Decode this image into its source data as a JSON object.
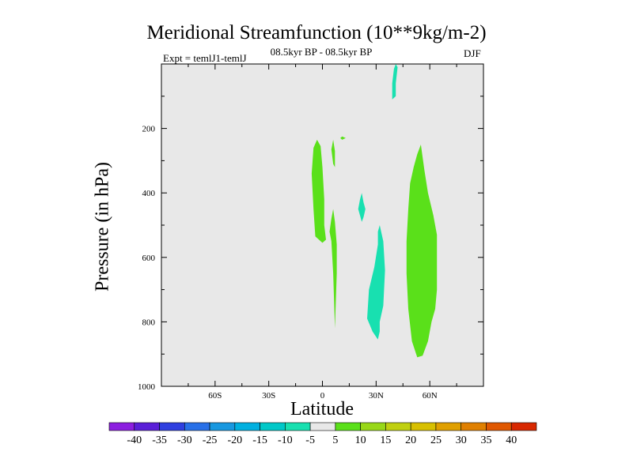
{
  "chart_data": {
    "type": "contour",
    "title": "Meridional Streamfunction (10**9kg/m-2)",
    "subtitle": "08.5kyr BP - 08.5kyr BP",
    "left_label": "Expt = temlJ1-temlJ",
    "right_label": "DJF",
    "xlabel": "Latitude",
    "ylabel": "Pressure (in hPa)",
    "xlim": [
      -90,
      90
    ],
    "ylim": [
      1000,
      0
    ],
    "x_ticks": [
      {
        "value": -60,
        "label": "60S"
      },
      {
        "value": -30,
        "label": "30S"
      },
      {
        "value": 0,
        "label": "0"
      },
      {
        "value": 30,
        "label": "30N"
      },
      {
        "value": 60,
        "label": "60N"
      }
    ],
    "y_ticks": [
      {
        "value": 200,
        "label": "200"
      },
      {
        "value": 400,
        "label": "400"
      },
      {
        "value": 600,
        "label": "600"
      },
      {
        "value": 800,
        "label": "800"
      },
      {
        "value": 1000,
        "label": "1000"
      }
    ],
    "background_color": "#e8e8e8",
    "colorbar": {
      "labels": [
        "-40",
        "-35",
        "-30",
        "-25",
        "-20",
        "-15",
        "-10",
        "-5",
        "5",
        "10",
        "15",
        "20",
        "25",
        "30",
        "35",
        "40"
      ],
      "colors": [
        "#8c1ee0",
        "#5a1fd8",
        "#2f3fe0",
        "#2870e8",
        "#1898e0",
        "#00b0e0",
        "#00c8c8",
        "#18e0b0",
        "#e8e8e8",
        "#5ae01a",
        "#98d818",
        "#c0d010",
        "#d8c000",
        "#e0a000",
        "#e08000",
        "#e05800",
        "#d82800"
      ]
    },
    "regions": [
      {
        "level": "5 to 10",
        "color": "#5ae01a",
        "points": [
          [
            -3,
            235
          ],
          [
            -1,
            255
          ],
          [
            0,
            320
          ],
          [
            1,
            420
          ],
          [
            1,
            500
          ],
          [
            2,
            545
          ],
          [
            0,
            555
          ],
          [
            -4,
            535
          ],
          [
            -5,
            450
          ],
          [
            -6,
            340
          ],
          [
            -5,
            260
          ]
        ]
      },
      {
        "level": "5 to 10",
        "color": "#5ae01a",
        "points": [
          [
            6,
            235
          ],
          [
            7,
            270
          ],
          [
            7,
            320
          ],
          [
            6,
            310
          ],
          [
            5,
            265
          ]
        ]
      },
      {
        "level": "5 to 10",
        "color": "#5ae01a",
        "points": [
          [
            11,
            225
          ],
          [
            13,
            230
          ],
          [
            11,
            235
          ],
          [
            10,
            230
          ]
        ]
      },
      {
        "level": "5 to 10",
        "color": "#5ae01a",
        "points": [
          [
            6,
            450
          ],
          [
            7,
            490
          ],
          [
            8,
            560
          ],
          [
            8,
            650
          ],
          [
            7,
            820
          ],
          [
            6,
            650
          ],
          [
            5,
            550
          ],
          [
            4,
            520
          ],
          [
            5,
            480
          ]
        ]
      },
      {
        "level": "-5 to -10",
        "color": "#18e0b0",
        "points": [
          [
            41,
            0
          ],
          [
            42,
            10
          ],
          [
            41,
            60
          ],
          [
            41,
            100
          ],
          [
            39,
            110
          ],
          [
            39,
            60
          ],
          [
            40,
            15
          ]
        ]
      },
      {
        "level": "-5 to -10",
        "color": "#18e0b0",
        "points": [
          [
            22,
            400
          ],
          [
            23,
            430
          ],
          [
            24,
            450
          ],
          [
            23,
            475
          ],
          [
            22,
            490
          ],
          [
            21,
            470
          ],
          [
            20,
            450
          ],
          [
            21,
            420
          ]
        ]
      },
      {
        "level": "-5 to -10",
        "color": "#18e0b0",
        "points": [
          [
            32,
            500
          ],
          [
            34,
            550
          ],
          [
            35,
            640
          ],
          [
            34,
            750
          ],
          [
            32,
            800
          ],
          [
            32,
            830
          ],
          [
            31,
            855
          ],
          [
            28,
            830
          ],
          [
            25,
            790
          ],
          [
            26,
            700
          ],
          [
            29,
            630
          ],
          [
            31,
            560
          ],
          [
            31,
            520
          ]
        ]
      },
      {
        "level": "5 to 10",
        "color": "#5ae01a",
        "points": [
          [
            55,
            250
          ],
          [
            57,
            330
          ],
          [
            59,
            400
          ],
          [
            62,
            470
          ],
          [
            64,
            530
          ],
          [
            64,
            700
          ],
          [
            63,
            760
          ],
          [
            61,
            800
          ],
          [
            59,
            860
          ],
          [
            56,
            905
          ],
          [
            53,
            910
          ],
          [
            50,
            860
          ],
          [
            48,
            760
          ],
          [
            47,
            650
          ],
          [
            47,
            550
          ],
          [
            48,
            450
          ],
          [
            49,
            370
          ],
          [
            51,
            320
          ],
          [
            53,
            280
          ]
        ]
      }
    ]
  }
}
